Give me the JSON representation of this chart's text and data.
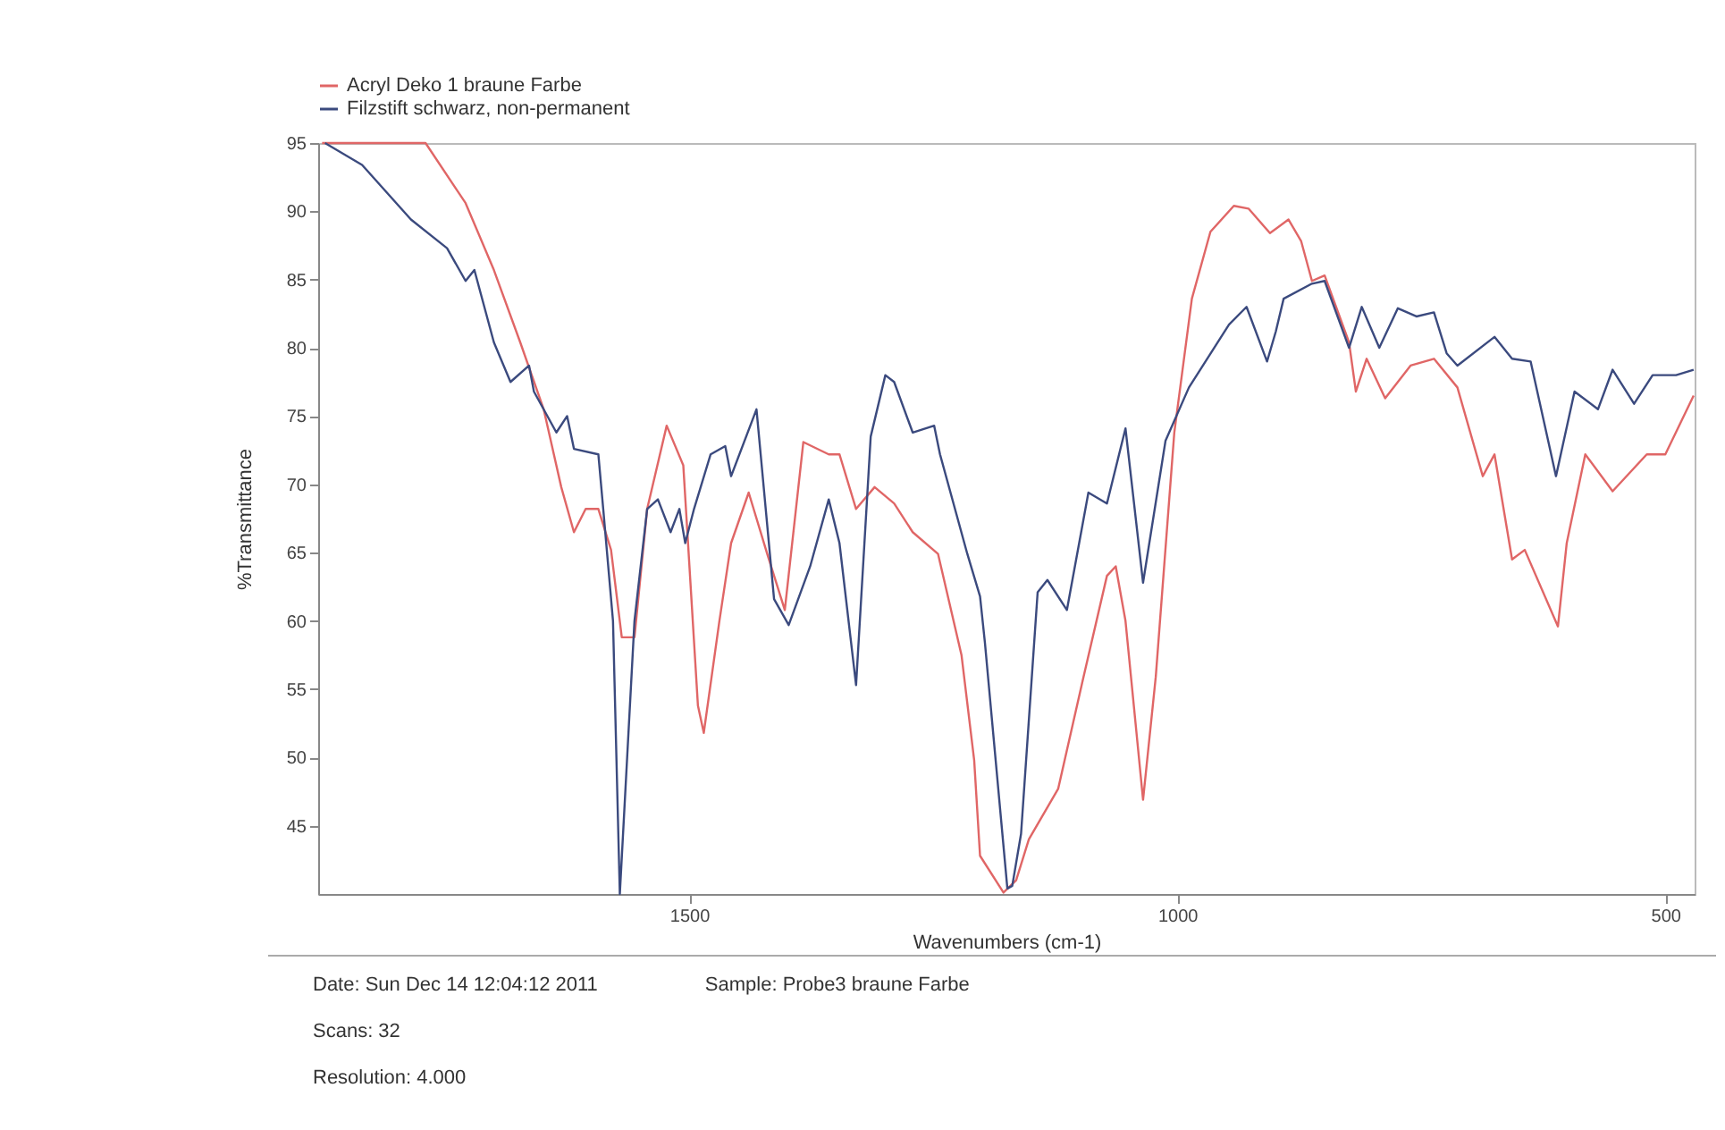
{
  "chart_data": {
    "type": "line",
    "xlabel": "Wavenumbers (cm-1)",
    "ylabel": "%Transmittance",
    "xlim": [
      1880,
      470
    ],
    "xticks": [
      1500,
      1000,
      500
    ],
    "ylim": [
      40,
      95
    ],
    "yticks": [
      45,
      50,
      55,
      60,
      65,
      70,
      75,
      80,
      85,
      90,
      95
    ],
    "legend": "top left",
    "grid": false,
    "marker": "none",
    "line_style": "solid",
    "annotations": [
      "Date: Sun Dec 14 12:04:12 2011",
      "Sample: Probe3 braune Farbe",
      "Scans: 32",
      "Resolution: 4.000"
    ],
    "series": [
      {
        "name": "Acryl Deko 1 braune Farbe",
        "color": "#e06666",
        "x": [
          1876,
          1835,
          1770,
          1729,
          1700,
          1673,
          1649,
          1631,
          1618,
          1606,
          1593,
          1580,
          1569,
          1556,
          1543,
          1523,
          1506,
          1491,
          1485,
          1469,
          1457,
          1439,
          1420,
          1402,
          1383,
          1357,
          1346,
          1329,
          1310,
          1290,
          1271,
          1245,
          1221,
          1208,
          1202,
          1178,
          1165,
          1152,
          1122,
          1096,
          1072,
          1063,
          1053,
          1035,
          1022,
          1003,
          985,
          966,
          942,
          927,
          905,
          886,
          873,
          862,
          849,
          824,
          817,
          806,
          787,
          761,
          737,
          713,
          687,
          675,
          657,
          644,
          610,
          601,
          582,
          554,
          519,
          500,
          471
        ],
        "values": [
          95,
          95,
          95,
          90.6,
          85.7,
          80.4,
          75.5,
          69.8,
          66.5,
          68.2,
          68.2,
          65.2,
          58.8,
          58.8,
          68.2,
          74.3,
          71.4,
          53.8,
          51.8,
          60,
          65.7,
          69.4,
          64.9,
          60.8,
          73.1,
          72.2,
          72.2,
          68.2,
          69.8,
          68.6,
          66.5,
          64.9,
          57.5,
          49.8,
          42.8,
          40.1,
          41,
          44,
          47.7,
          55.9,
          63.3,
          64,
          60,
          46.9,
          55.9,
          73.8,
          83.6,
          88.5,
          90.4,
          90.2,
          88.4,
          89.4,
          87.8,
          84.9,
          85.3,
          80.4,
          76.8,
          79.2,
          76.3,
          78.7,
          79.2,
          77.1,
          70.6,
          72.2,
          64.5,
          65.2,
          59.6,
          65.7,
          72.2,
          69.5,
          72.2,
          72.2,
          76.5
        ]
      },
      {
        "name": "Filzstift schwarz, non-permanent",
        "color": "#3b4a7e",
        "x": [
          1873,
          1835,
          1785,
          1748,
          1729,
          1720,
          1700,
          1683,
          1664,
          1659,
          1636,
          1625,
          1618,
          1593,
          1588,
          1578,
          1571,
          1556,
          1543,
          1532,
          1519,
          1510,
          1504,
          1495,
          1478,
          1463,
          1457,
          1431,
          1413,
          1398,
          1376,
          1357,
          1346,
          1329,
          1314,
          1299,
          1290,
          1271,
          1249,
          1243,
          1215,
          1202,
          1197,
          1174,
          1169,
          1160,
          1143,
          1133,
          1113,
          1091,
          1072,
          1053,
          1035,
          1012,
          988,
          947,
          929,
          908,
          899,
          891,
          862,
          849,
          824,
          811,
          793,
          774,
          755,
          737,
          724,
          713,
          675,
          657,
          638,
          612,
          593,
          569,
          554,
          532,
          513,
          489,
          471
        ],
        "values": [
          95,
          93.4,
          89.4,
          87.3,
          84.9,
          85.7,
          80.4,
          77.5,
          78.7,
          76.8,
          73.8,
          75,
          72.6,
          72.2,
          68.2,
          60,
          40,
          60,
          68.2,
          68.9,
          66.5,
          68.2,
          65.7,
          68.2,
          72.2,
          72.8,
          70.6,
          75.5,
          61.6,
          59.7,
          64,
          68.9,
          65.7,
          55.3,
          73.5,
          78,
          77.5,
          73.8,
          74.3,
          72.2,
          64.9,
          61.8,
          58.4,
          40.4,
          40.6,
          44.4,
          62.1,
          63,
          60.8,
          69.4,
          68.6,
          74.1,
          62.8,
          73.2,
          77.1,
          81.7,
          83,
          79,
          81.2,
          83.6,
          84.7,
          84.9,
          80,
          83,
          80,
          82.9,
          82.3,
          82.6,
          79.6,
          78.7,
          80.8,
          79.2,
          79,
          70.6,
          76.8,
          75.5,
          78.4,
          75.9,
          78,
          78,
          78.4
        ]
      }
    ]
  }
}
